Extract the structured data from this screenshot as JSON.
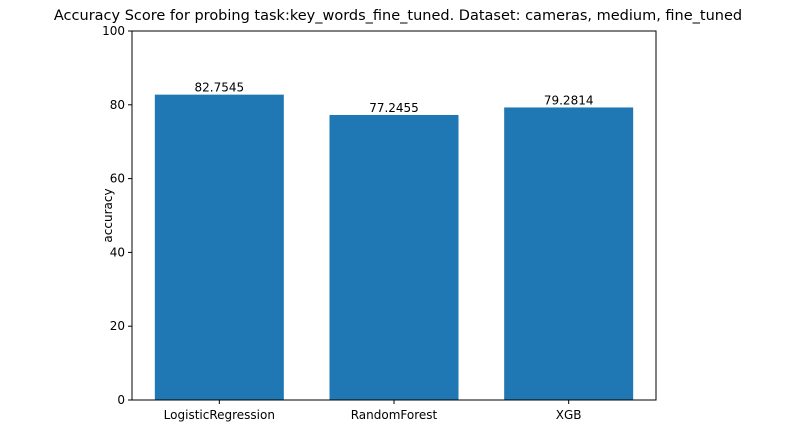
{
  "chart_data": {
    "type": "bar",
    "title": "Accuracy Score for probing task:key_words_fine_tuned. Dataset: cameras, medium, fine_tuned",
    "xlabel": "",
    "ylabel": "accuracy",
    "categories": [
      "LogisticRegression",
      "RandomForest",
      "XGB"
    ],
    "values": [
      82.7545,
      77.2455,
      79.2814
    ],
    "value_labels": [
      "82.7545",
      "77.2455",
      "79.2814"
    ],
    "ylim": [
      0,
      100
    ],
    "yticks": [
      0,
      20,
      40,
      60,
      80,
      100
    ],
    "ytick_labels": [
      "0",
      "20",
      "40",
      "60",
      "80",
      "100"
    ],
    "bar_color": "#1f77b4",
    "grid": false,
    "legend": "none"
  }
}
